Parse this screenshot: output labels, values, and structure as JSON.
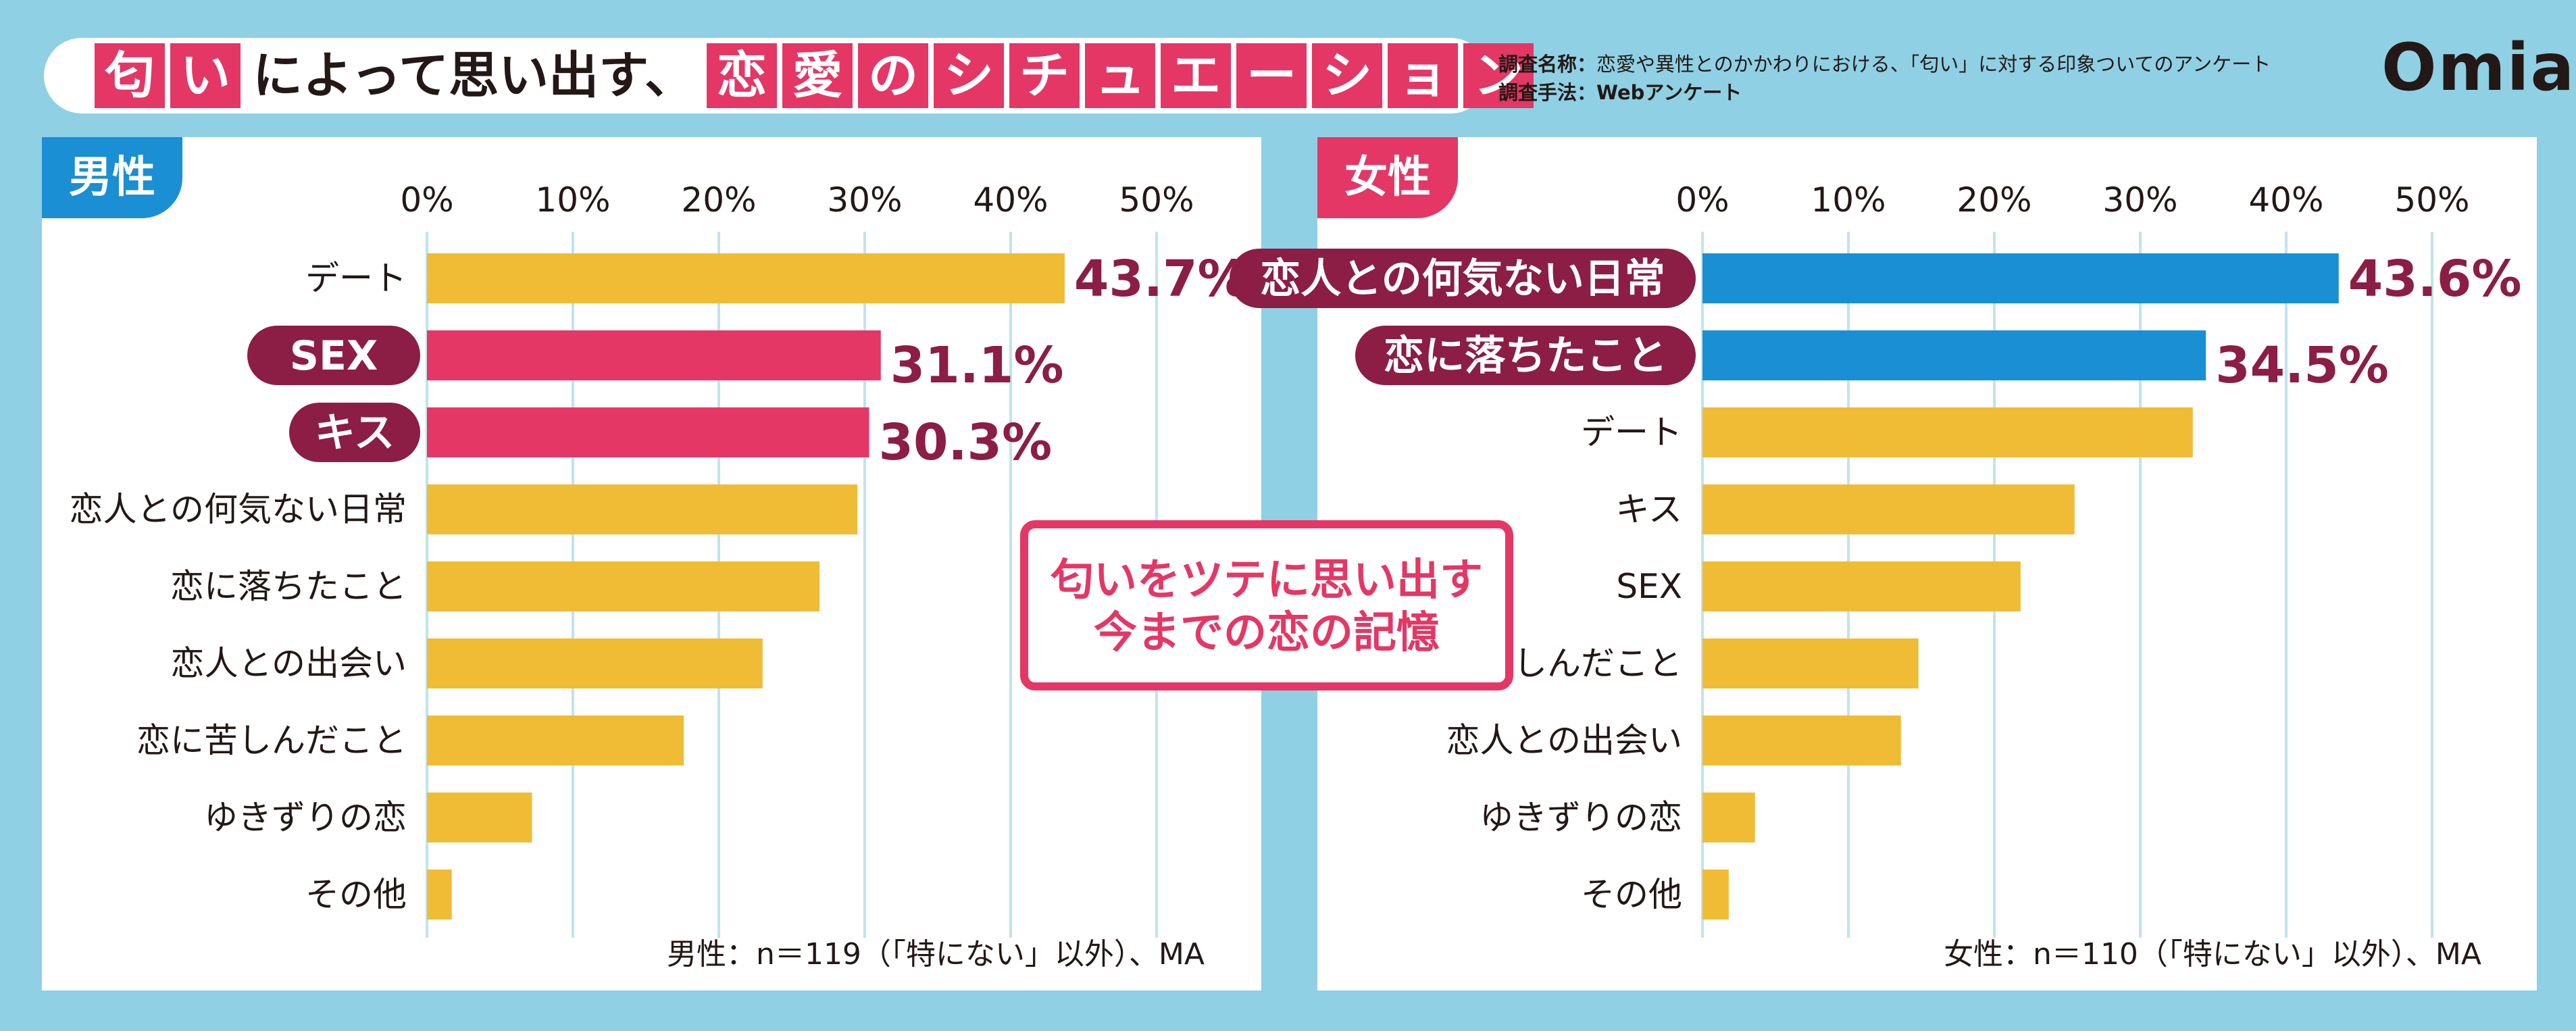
{
  "title": {
    "chars": [
      {
        "text": "匂",
        "hl": true
      },
      {
        "text": "い",
        "hl": true
      },
      {
        "text": "によって思い出す、",
        "hl": false
      },
      {
        "text": "恋",
        "hl": true
      },
      {
        "text": "愛",
        "hl": true
      },
      {
        "text": "の",
        "hl": true
      },
      {
        "text": "シ",
        "hl": true
      },
      {
        "text": "チ",
        "hl": true
      },
      {
        "text": "ュ",
        "hl": true
      },
      {
        "text": "エ",
        "hl": true
      },
      {
        "text": "ー",
        "hl": true
      },
      {
        "text": "シ",
        "hl": true
      },
      {
        "text": "ョ",
        "hl": true
      },
      {
        "text": "ン",
        "hl": true
      }
    ]
  },
  "survey": {
    "name_key": "調査名称：",
    "name_value": "恋愛や異性とのかかわりにおける、「匂い」に対する印象ついてのアンケート",
    "method_key": "調査手法：",
    "method_value": "Webアンケート"
  },
  "logo": "Omiai",
  "callout": {
    "line1": "匂いをツテに思い出す",
    "line2": "今までの恋の記憶"
  },
  "colors": {
    "bar_default": "#f0bc36",
    "bar_male_highlight": "#e43765",
    "bar_female_highlight": "#1a8fd3",
    "label_highlight_bg": "#8c1d45",
    "value_label": "#8c1d45",
    "gridline": "#bfe3f0"
  },
  "chart_data": [
    {
      "type": "bar",
      "orientation": "horizontal",
      "panel_title": "男性",
      "categories": [
        "デート",
        "SEX",
        "キス",
        "恋人との何気ない日常",
        "恋に落ちたこと",
        "恋人との出会い",
        "恋に苦しんだこと",
        "ゆきずりの恋",
        "その他"
      ],
      "values": [
        43.7,
        31.1,
        30.3,
        29.5,
        26.9,
        23.0,
        17.6,
        7.2,
        1.7
      ],
      "highlight_label_indices": [
        1,
        2
      ],
      "highlight_bar_indices": [
        1,
        2
      ],
      "value_labels": {
        "0": "43.7%",
        "1": "31.1%",
        "2": "30.3%"
      },
      "ticks": [
        "0%",
        "10%",
        "20%",
        "30%",
        "40%",
        "50%"
      ],
      "xlim": [
        0,
        55
      ],
      "grid": true,
      "note": "男性：n＝119（「特にない」以外）、MA"
    },
    {
      "type": "bar",
      "orientation": "horizontal",
      "panel_title": "女性",
      "categories": [
        "恋人との何気ない日常",
        "恋に落ちたこと",
        "デート",
        "キス",
        "SEX",
        "恋に苦しんだこと",
        "恋人との出会い",
        "ゆきずりの恋",
        "その他"
      ],
      "values": [
        43.6,
        34.5,
        33.6,
        25.5,
        21.8,
        14.8,
        13.6,
        3.6,
        1.8
      ],
      "highlight_label_indices": [
        0,
        1
      ],
      "highlight_bar_indices": [
        0,
        1
      ],
      "value_labels": {
        "0": "43.6%",
        "1": "34.5%"
      },
      "ticks": [
        "0%",
        "10%",
        "20%",
        "30%",
        "40%",
        "50%"
      ],
      "xlim": [
        0,
        55
      ],
      "grid": true,
      "note": "女性：n＝110（「特にない」以外）、MA"
    }
  ]
}
